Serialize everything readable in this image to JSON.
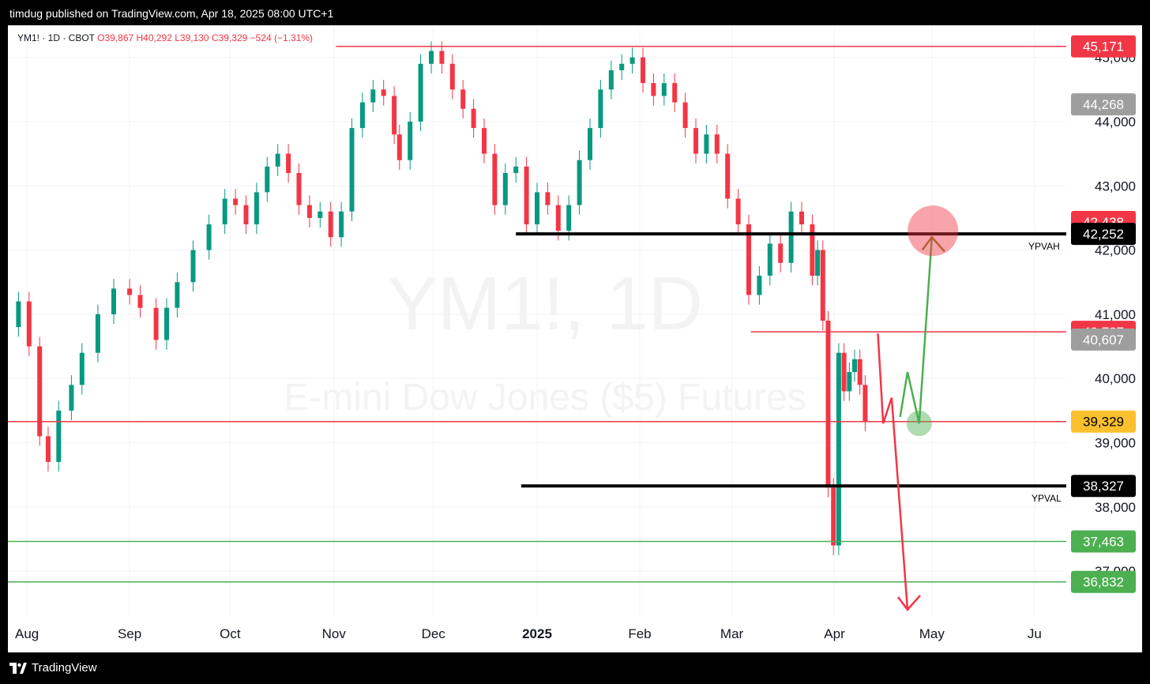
{
  "header": {
    "publisher": "timdug published on TradingView.com, Apr 18, 2025 08:00 UTC+1"
  },
  "footer": {
    "brand": "TradingView"
  },
  "colors": {
    "up": "#089981",
    "down": "#f23645",
    "black": "#000000",
    "grey": "#888888",
    "green": "#4caf50",
    "yellow": "#fbc02d"
  },
  "chart_data": {
    "type": "candlestick",
    "watermark": {
      "symbol": "YM1!, 1D",
      "name": "E-mini Dow Jones ($5) Futures"
    },
    "info": {
      "symbol": "YM1!",
      "interval": "1D",
      "exchange": "CBOT",
      "open": "O39,867",
      "high": "H40,292",
      "low": "L39,130",
      "close": "C39,329",
      "change": "−524 (−1.31%)"
    },
    "xaxis": {
      "labels": [
        {
          "text": "Aug",
          "pos": 0.018
        },
        {
          "text": "Sep",
          "pos": 0.115
        },
        {
          "text": "Oct",
          "pos": 0.21
        },
        {
          "text": "Nov",
          "pos": 0.308
        },
        {
          "text": "Dec",
          "pos": 0.402
        },
        {
          "text": "2025",
          "pos": 0.5,
          "bold": true
        },
        {
          "text": "Feb",
          "pos": 0.597
        },
        {
          "text": "Mar",
          "pos": 0.684
        },
        {
          "text": "Apr",
          "pos": 0.781
        },
        {
          "text": "May",
          "pos": 0.873
        },
        {
          "text": "Ju",
          "pos": 0.97
        }
      ]
    },
    "yaxis": {
      "range": [
        36300,
        45500
      ],
      "ticks": [
        45000,
        44000,
        43000,
        42000,
        41000,
        40000,
        39000,
        38000,
        37000
      ]
    },
    "price_labels": [
      {
        "text": "45,171",
        "value": 45171,
        "color": "#f23645"
      },
      {
        "text": "44,268",
        "value": 44268,
        "color": "#9e9e9e"
      },
      {
        "text": "42,438",
        "value": 42438,
        "color": "#f23645"
      },
      {
        "text": "42,252",
        "value": 42252,
        "color": "#000000"
      },
      {
        "text": "40,727",
        "value": 40727,
        "color": "#f23645"
      },
      {
        "text": "40,607",
        "value": 40607,
        "color": "#9e9e9e"
      },
      {
        "text": "39,329",
        "value": 39329,
        "color": "#fbc02d",
        "dark_text": true
      },
      {
        "text": "38,327",
        "value": 38327,
        "color": "#000000"
      },
      {
        "text": "37,463",
        "value": 37463,
        "color": "#4caf50"
      },
      {
        "text": "36,832",
        "value": 36832,
        "color": "#4caf50"
      }
    ],
    "level_labels": {
      "ypvah": "YPVAH",
      "ypval": "YPVAL"
    },
    "levels": [
      {
        "value": 45171,
        "color": "#f23645",
        "from": 0.31
      },
      {
        "value": 42252,
        "color": "#000000",
        "from": 0.48,
        "thick": true
      },
      {
        "value": 40727,
        "color": "#f23645",
        "from": 0.702
      },
      {
        "value": 39329,
        "color": "#f23645",
        "from": 0.0
      },
      {
        "value": 38327,
        "color": "#000000",
        "from": 0.485,
        "thick": true
      },
      {
        "value": 37463,
        "color": "#4caf50",
        "from": 0.0
      },
      {
        "value": 36832,
        "color": "#4caf50",
        "from": 0.0
      }
    ],
    "series": [
      {
        "name": "closes",
        "points": [
          [
            0.0,
            40800
          ],
          [
            0.01,
            41200
          ],
          [
            0.02,
            40500
          ],
          [
            0.03,
            39100
          ],
          [
            0.038,
            38700
          ],
          [
            0.048,
            39500
          ],
          [
            0.06,
            39900
          ],
          [
            0.07,
            40400
          ],
          [
            0.085,
            41000
          ],
          [
            0.1,
            41400
          ],
          [
            0.115,
            41300
          ],
          [
            0.125,
            41100
          ],
          [
            0.14,
            40600
          ],
          [
            0.15,
            41100
          ],
          [
            0.16,
            41500
          ],
          [
            0.175,
            42000
          ],
          [
            0.19,
            42400
          ],
          [
            0.205,
            42800
          ],
          [
            0.215,
            42700
          ],
          [
            0.225,
            42400
          ],
          [
            0.235,
            42900
          ],
          [
            0.245,
            43300
          ],
          [
            0.255,
            43500
          ],
          [
            0.265,
            43200
          ],
          [
            0.275,
            42700
          ],
          [
            0.285,
            42500
          ],
          [
            0.295,
            42600
          ],
          [
            0.305,
            42200
          ],
          [
            0.315,
            42600
          ],
          [
            0.325,
            43900
          ],
          [
            0.335,
            44300
          ],
          [
            0.345,
            44500
          ],
          [
            0.355,
            44400
          ],
          [
            0.365,
            43800
          ],
          [
            0.37,
            43400
          ],
          [
            0.38,
            44000
          ],
          [
            0.39,
            44900
          ],
          [
            0.4,
            45100
          ],
          [
            0.41,
            44900
          ],
          [
            0.42,
            44500
          ],
          [
            0.43,
            44200
          ],
          [
            0.44,
            43900
          ],
          [
            0.45,
            43500
          ],
          [
            0.46,
            42700
          ],
          [
            0.47,
            43200
          ],
          [
            0.48,
            43300
          ],
          [
            0.49,
            42400
          ],
          [
            0.5,
            42900
          ],
          [
            0.51,
            42700
          ],
          [
            0.52,
            42300
          ],
          [
            0.53,
            42700
          ],
          [
            0.54,
            43400
          ],
          [
            0.55,
            43900
          ],
          [
            0.56,
            44500
          ],
          [
            0.57,
            44800
          ],
          [
            0.58,
            44900
          ],
          [
            0.59,
            45000
          ],
          [
            0.6,
            44600
          ],
          [
            0.61,
            44400
          ],
          [
            0.62,
            44600
          ],
          [
            0.63,
            44300
          ],
          [
            0.64,
            43900
          ],
          [
            0.65,
            43500
          ],
          [
            0.66,
            43800
          ],
          [
            0.67,
            43500
          ],
          [
            0.68,
            42800
          ],
          [
            0.69,
            42400
          ],
          [
            0.7,
            41300
          ],
          [
            0.71,
            41600
          ],
          [
            0.72,
            42100
          ],
          [
            0.73,
            41800
          ],
          [
            0.74,
            42600
          ],
          [
            0.75,
            42400
          ],
          [
            0.76,
            41600
          ],
          [
            0.765,
            42000
          ],
          [
            0.77,
            40900
          ],
          [
            0.775,
            38300
          ],
          [
            0.78,
            37400
          ],
          [
            0.785,
            40400
          ],
          [
            0.79,
            39800
          ],
          [
            0.795,
            40100
          ],
          [
            0.8,
            40300
          ],
          [
            0.805,
            39900
          ],
          [
            0.81,
            39329
          ]
        ]
      }
    ],
    "projection": {
      "red_path": [
        [
          0.822,
          40700
        ],
        [
          0.827,
          39300
        ],
        [
          0.835,
          39700
        ],
        [
          0.85,
          36400
        ]
      ],
      "green_path": [
        [
          0.843,
          39400
        ],
        [
          0.85,
          40100
        ],
        [
          0.861,
          39300
        ],
        [
          0.873,
          42200
        ]
      ],
      "green_circle": {
        "x": 0.861,
        "y": 39300
      },
      "red_circle": {
        "x": 0.874,
        "y": 42300
      }
    }
  }
}
